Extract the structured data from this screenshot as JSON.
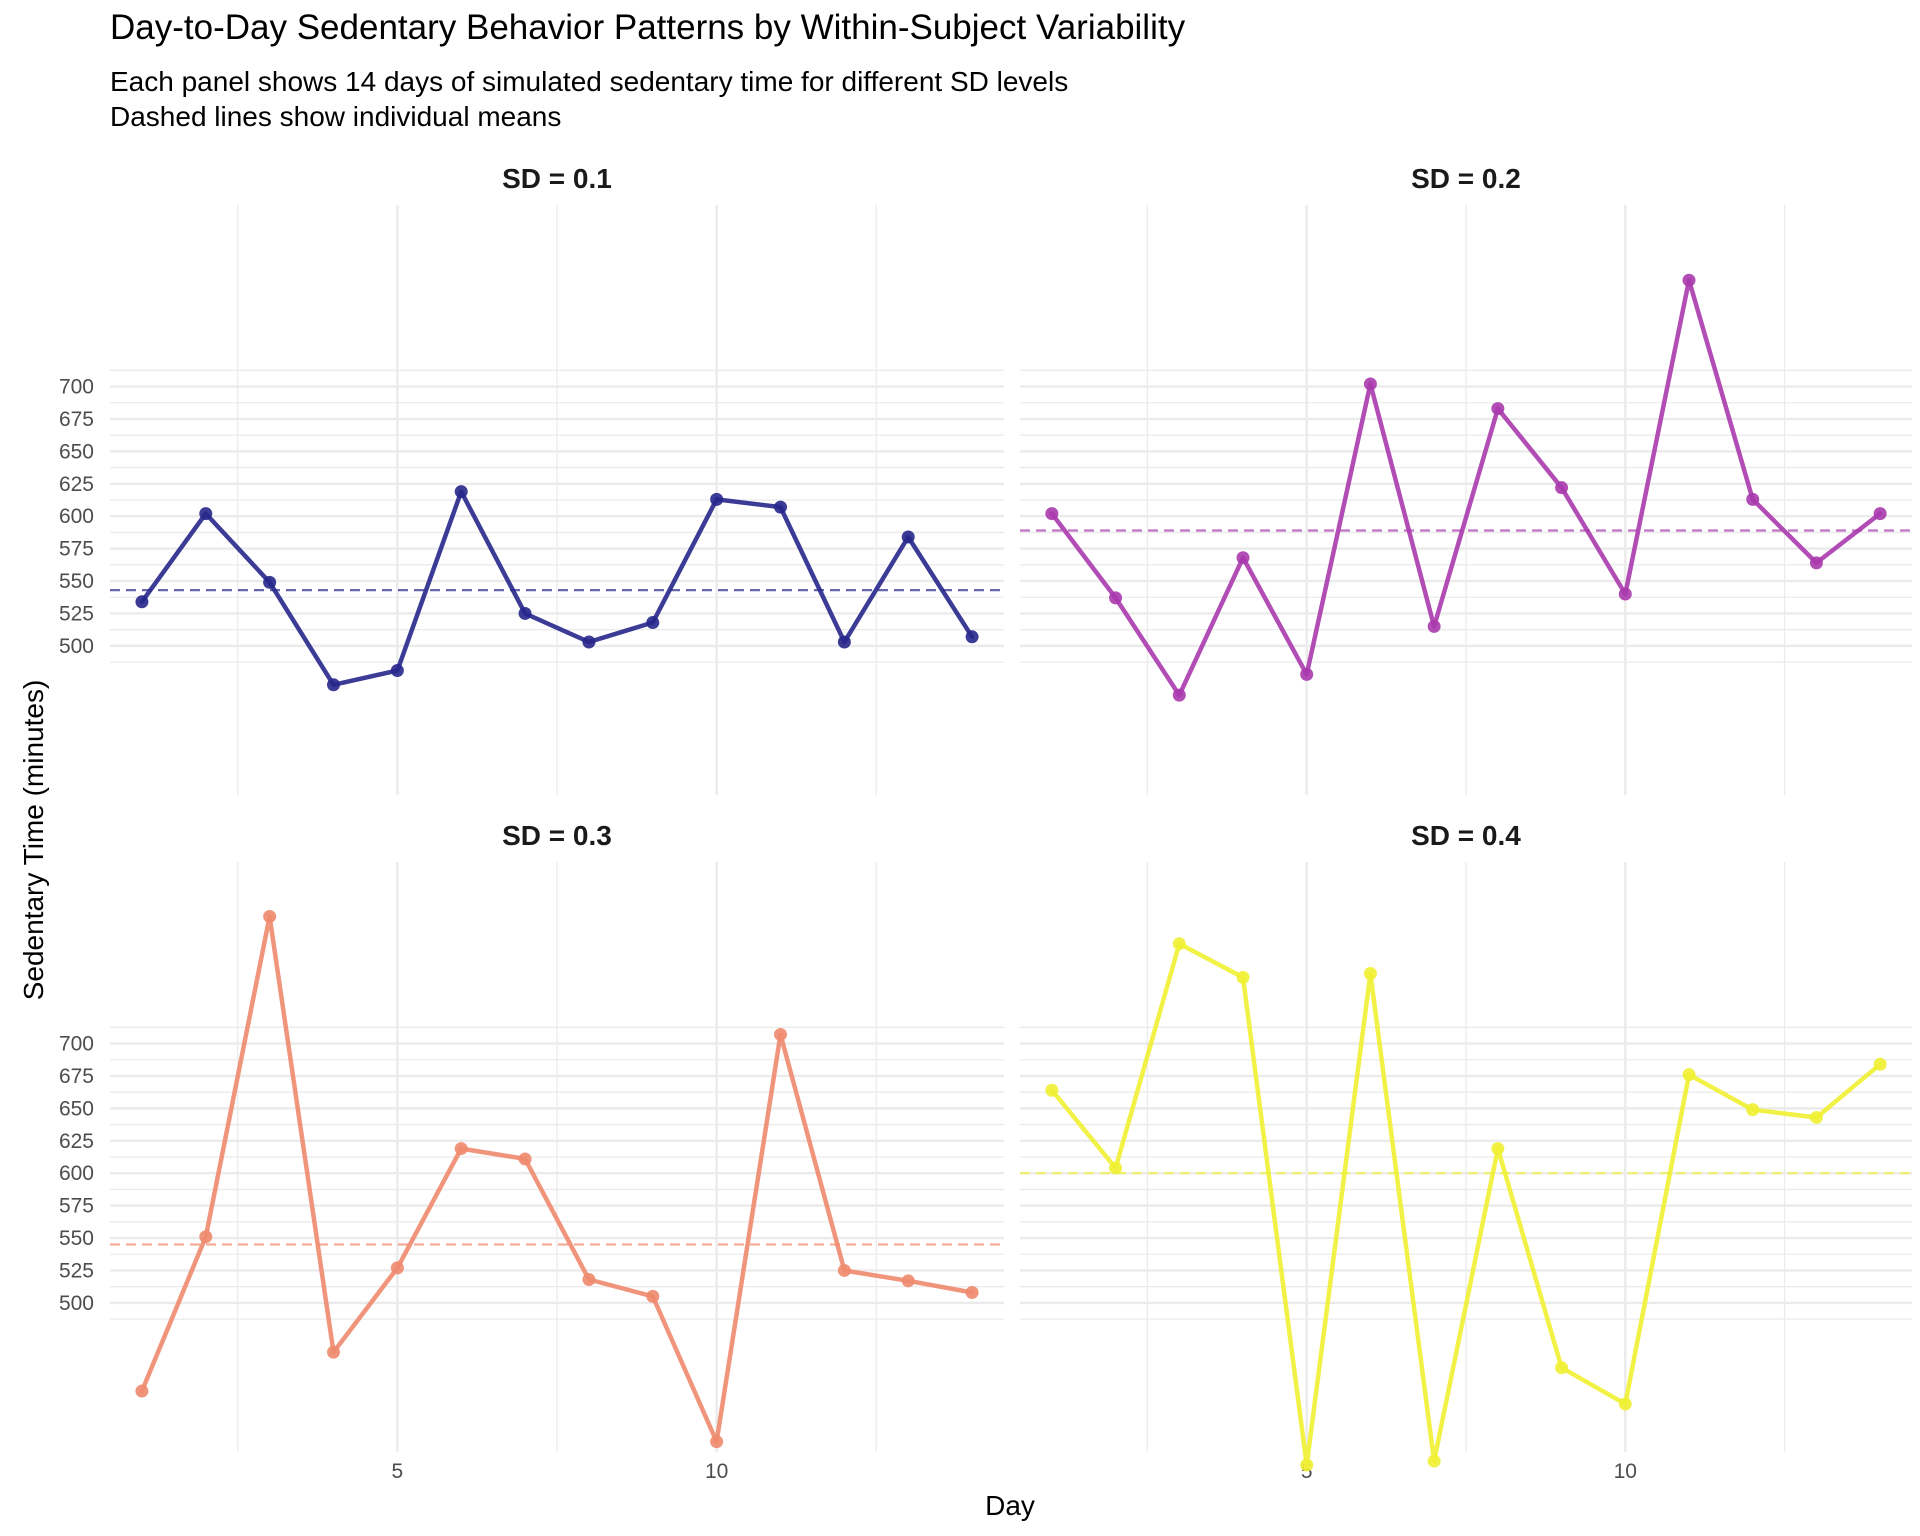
{
  "title": "Day-to-Day Sedentary Behavior Patterns by Within-Subject Variability",
  "subtitle_lines": [
    "Each panel shows 14 days of simulated sedentary time for different SD levels",
    "Dashed lines show individual means"
  ],
  "chart_data": {
    "type": "line",
    "xlabel": "Day",
    "ylabel": "Sedentary Time (minutes)",
    "x_ticks": [
      5,
      10
    ],
    "y_ticks": [
      500,
      525,
      550,
      575,
      600,
      625,
      650,
      675,
      700
    ],
    "xlim": [
      0.5,
      14.5
    ],
    "ylim": [
      385,
      840
    ],
    "grid": true,
    "legend": "none",
    "layout": "2x2 facets",
    "series": [
      {
        "name": "SD = 0.1",
        "color": "#27278c",
        "mean": 543,
        "x": [
          1,
          2,
          3,
          4,
          5,
          6,
          7,
          8,
          9,
          10,
          11,
          12,
          13,
          14
        ],
        "values": [
          534,
          602,
          549,
          470,
          481,
          619,
          525,
          503,
          518,
          613,
          607,
          503,
          584,
          507
        ]
      },
      {
        "name": "SD = 0.2",
        "color": "#a83aad",
        "mean": 589,
        "x": [
          1,
          2,
          3,
          4,
          5,
          6,
          7,
          8,
          9,
          10,
          11,
          12,
          13,
          14
        ],
        "values": [
          602,
          537,
          462,
          568,
          478,
          702,
          515,
          683,
          622,
          540,
          782,
          613,
          564,
          602
        ]
      },
      {
        "name": "SD = 0.3",
        "color": "#ee8a6d",
        "mean": 545,
        "x": [
          1,
          2,
          3,
          4,
          5,
          6,
          7,
          8,
          9,
          10,
          11,
          12,
          13,
          14
        ],
        "values": [
          432,
          551,
          798,
          462,
          527,
          619,
          611,
          518,
          505,
          393,
          707,
          525,
          517,
          508
        ]
      },
      {
        "name": "SD = 0.4",
        "color": "#f0f032",
        "mean": 600,
        "x": [
          1,
          2,
          3,
          4,
          5,
          6,
          7,
          8,
          9,
          10,
          11,
          12,
          13,
          14
        ],
        "values": [
          664,
          604,
          777,
          751,
          375,
          754,
          378,
          619,
          450,
          422,
          676,
          649,
          643,
          684
        ]
      }
    ]
  }
}
